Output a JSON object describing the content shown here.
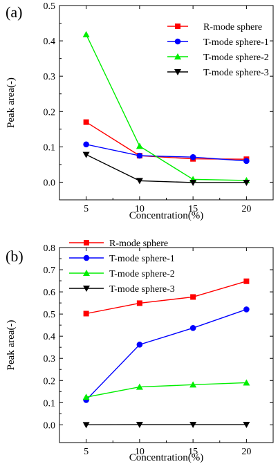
{
  "chart_data": [
    {
      "type": "line",
      "panel_label": "(a)",
      "xlabel": "Concentration(%)",
      "ylabel": "Peak area(-)",
      "x": [
        5,
        10,
        15,
        20
      ],
      "xlim": [
        2.5,
        22.5
      ],
      "ylim": [
        -0.05,
        0.5
      ],
      "xticks": [
        5,
        10,
        15,
        20
      ],
      "yticks": [
        0.0,
        0.1,
        0.2,
        0.3,
        0.4,
        0.5
      ],
      "ytick_labels": [
        "0.0",
        "0.1",
        "0.2",
        "0.3",
        "0.4",
        "0.5"
      ],
      "legend_position": "top-right",
      "grid": false,
      "series": [
        {
          "name": "R-mode sphere",
          "values": [
            0.17,
            0.075,
            0.066,
            0.065
          ],
          "color": "#ff0000",
          "marker": "square"
        },
        {
          "name": "T-mode sphere-1",
          "values": [
            0.107,
            0.075,
            0.071,
            0.06
          ],
          "color": "#0000ff",
          "marker": "circle"
        },
        {
          "name": "T-mode sphere-2",
          "values": [
            0.418,
            0.102,
            0.008,
            0.005
          ],
          "color": "#00ee00",
          "marker": "triangle-up"
        },
        {
          "name": "T-mode sphere-3",
          "values": [
            0.078,
            0.004,
            -0.001,
            -0.001
          ],
          "color": "#000000",
          "marker": "triangle-down"
        }
      ]
    },
    {
      "type": "line",
      "panel_label": "(b)",
      "xlabel": "Concentration(%)",
      "ylabel": "Peak area(-)",
      "x": [
        5,
        10,
        15,
        20
      ],
      "xlim": [
        2.5,
        22.5
      ],
      "ylim": [
        -0.08,
        0.8
      ],
      "xticks": [
        5,
        10,
        15,
        20
      ],
      "yticks": [
        0.0,
        0.1,
        0.2,
        0.3,
        0.4,
        0.5,
        0.6,
        0.7,
        0.8
      ],
      "ytick_labels": [
        "0.0",
        "0.1",
        "0.2",
        "0.3",
        "0.4",
        "0.5",
        "0.6",
        "0.7",
        "0.8"
      ],
      "legend_position": "top-left",
      "grid": false,
      "series": [
        {
          "name": "R-mode sphere",
          "values": [
            0.502,
            0.549,
            0.577,
            0.648
          ],
          "color": "#ff0000",
          "marker": "square"
        },
        {
          "name": "T-mode sphere-1",
          "values": [
            0.112,
            0.362,
            0.437,
            0.521
          ],
          "color": "#0000ff",
          "marker": "circle"
        },
        {
          "name": "T-mode sphere-2",
          "values": [
            0.125,
            0.171,
            0.181,
            0.19
          ],
          "color": "#00ee00",
          "marker": "triangle-up"
        },
        {
          "name": "T-mode sphere-3",
          "values": [
            0.0,
            0.001,
            0.001,
            0.001
          ],
          "color": "#000000",
          "marker": "triangle-down"
        }
      ]
    }
  ]
}
